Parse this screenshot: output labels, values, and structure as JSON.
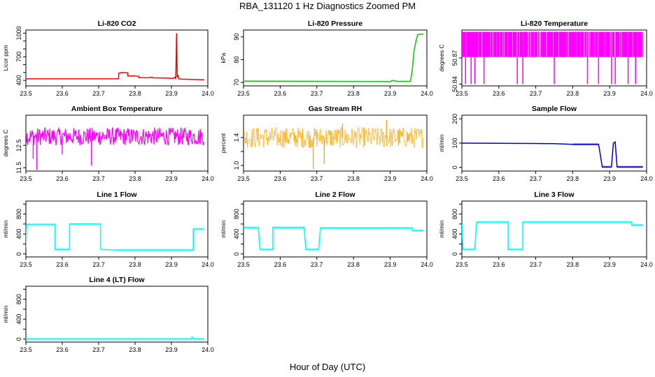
{
  "main_title": "RBA_131120  1 Hz Diagnostics Zoomed PM",
  "x_label": "Hour of Day (UTC)",
  "chart_data": [
    {
      "type": "line",
      "title": "Li-820 CO2",
      "ylabel": "Licor ppm",
      "color": "#ff0000",
      "xlim": [
        23.5,
        24.0
      ],
      "ylim": [
        330,
        1040
      ],
      "xticks": [
        23.5,
        23.6,
        23.7,
        23.8,
        23.9,
        24.0
      ],
      "yticks": [
        400,
        500,
        600,
        700,
        800,
        900,
        1000
      ],
      "yticklabels": [
        "400",
        "",
        "",
        "700",
        "",
        "",
        "1000"
      ],
      "points": [
        [
          23.5,
          420
        ],
        [
          23.755,
          420
        ],
        [
          23.755,
          490
        ],
        [
          23.765,
          500
        ],
        [
          23.78,
          495
        ],
        [
          23.78,
          455
        ],
        [
          23.795,
          458
        ],
        [
          23.81,
          452
        ],
        [
          23.81,
          435
        ],
        [
          23.84,
          433
        ],
        [
          23.845,
          442
        ],
        [
          23.85,
          432
        ],
        [
          23.88,
          430
        ],
        [
          23.905,
          426
        ],
        [
          23.91,
          440
        ],
        [
          23.912,
          420
        ],
        [
          23.914,
          1000
        ],
        [
          23.916,
          440
        ],
        [
          23.918,
          470
        ],
        [
          23.92,
          420
        ],
        [
          23.93,
          415
        ],
        [
          23.99,
          408
        ]
      ]
    },
    {
      "type": "line",
      "title": "Li-820 Pressure",
      "ylabel": "kPa",
      "color": "#00cc00",
      "xlim": [
        23.5,
        24.0
      ],
      "ylim": [
        68.5,
        93
      ],
      "xticks": [
        23.5,
        23.6,
        23.7,
        23.8,
        23.9,
        24.0
      ],
      "yticks": [
        70,
        80,
        90
      ],
      "yticklabels": [
        "70",
        "80",
        "90"
      ],
      "points": [
        [
          23.5,
          70.6
        ],
        [
          23.88,
          70.4
        ],
        [
          23.9,
          70.3
        ],
        [
          23.905,
          70.9
        ],
        [
          23.92,
          70.5
        ],
        [
          23.955,
          70.5
        ],
        [
          23.96,
          75
        ],
        [
          23.965,
          84
        ],
        [
          23.97,
          88
        ],
        [
          23.975,
          91
        ],
        [
          23.99,
          91.2
        ]
      ]
    },
    {
      "type": "dense-upper",
      "title": "Li-820 Temperature",
      "ylabel": "degrees C",
      "color": "#ff00ff",
      "xlim": [
        23.5,
        24.0
      ],
      "ylim": [
        50.838,
        50.902
      ],
      "xticks": [
        23.5,
        23.6,
        23.7,
        23.8,
        23.9,
        24.0
      ],
      "yticks": [
        50.84,
        50.87
      ],
      "yticklabels": [
        "50.84",
        "50.87"
      ],
      "levels": [
        50.871,
        50.9
      ],
      "spikes_to": 50.84,
      "spikes_x": [
        23.51,
        23.525,
        23.535,
        23.56,
        23.65,
        23.665,
        23.75,
        23.84,
        23.87,
        23.905,
        23.915,
        23.95,
        23.97
      ]
    },
    {
      "type": "noisy",
      "title": "Ambient Box Temperature",
      "ylabel": "degrees C",
      "color": "#ff00ff",
      "xlim": [
        23.5,
        24.0
      ],
      "ylim": [
        11.35,
        13.85
      ],
      "xticks": [
        23.5,
        23.6,
        23.7,
        23.8,
        23.9,
        24.0
      ],
      "yticks": [
        11.5,
        12.5
      ],
      "yticklabels": [
        "11.5",
        "12.5"
      ],
      "band_low": 12.5,
      "band_high": 13.3,
      "spikes": [
        [
          23.53,
          11.4
        ],
        [
          23.52,
          11.9
        ],
        [
          23.68,
          11.6
        ],
        [
          23.6,
          12.1
        ]
      ]
    },
    {
      "type": "noisy",
      "title": "Gas Stream RH",
      "ylabel": "percent",
      "color": "#ffa500",
      "xlim": [
        23.5,
        24.0
      ],
      "ylim": [
        0.92,
        1.72
      ],
      "xticks": [
        23.5,
        23.6,
        23.7,
        23.8,
        23.9,
        24.0
      ],
      "yticks": [
        1.0,
        1.2,
        1.4
      ],
      "yticklabels": [
        "1.0",
        "",
        "1.4"
      ],
      "band_low": 1.25,
      "band_high": 1.55,
      "spikes": [
        [
          23.69,
          0.95
        ],
        [
          23.72,
          1.02
        ],
        [
          23.77,
          1.6
        ],
        [
          23.89,
          1.65
        ]
      ]
    },
    {
      "type": "line",
      "title": "Sample Flow",
      "ylabel": "ml/min",
      "color": "#0000cc",
      "xlim": [
        23.5,
        24.0
      ],
      "ylim": [
        -15,
        215
      ],
      "xticks": [
        23.5,
        23.6,
        23.7,
        23.8,
        23.9,
        24.0
      ],
      "yticks": [
        0,
        100,
        200
      ],
      "yticklabels": [
        "0",
        "100",
        "200"
      ],
      "points": [
        [
          23.5,
          100
        ],
        [
          23.75,
          98
        ],
        [
          23.8,
          95
        ],
        [
          23.87,
          95
        ],
        [
          23.875,
          50
        ],
        [
          23.88,
          2
        ],
        [
          23.905,
          2
        ],
        [
          23.91,
          100
        ],
        [
          23.915,
          105
        ],
        [
          23.92,
          2
        ],
        [
          23.99,
          2
        ]
      ]
    },
    {
      "type": "line",
      "title": "Line 1 Flow",
      "ylabel": "ml/min",
      "color": "#00ffff",
      "xlim": [
        23.5,
        24.0
      ],
      "ylim": [
        -60,
        1060
      ],
      "xticks": [
        23.5,
        23.6,
        23.7,
        23.8,
        23.9,
        24.0
      ],
      "yticks": [
        0,
        200,
        400,
        600,
        800,
        1000
      ],
      "yticklabels": [
        "0",
        "",
        "400",
        "",
        "800",
        ""
      ],
      "points": [
        [
          23.5,
          120
        ],
        [
          23.502,
          590
        ],
        [
          23.58,
          590
        ],
        [
          23.58,
          90
        ],
        [
          23.62,
          90
        ],
        [
          23.62,
          600
        ],
        [
          23.705,
          600
        ],
        [
          23.705,
          90
        ],
        [
          23.75,
          80
        ],
        [
          23.96,
          80
        ],
        [
          23.96,
          500
        ],
        [
          23.99,
          500
        ]
      ]
    },
    {
      "type": "line",
      "title": "Line 2 Flow",
      "ylabel": "ml/min",
      "color": "#00ffff",
      "xlim": [
        23.5,
        24.0
      ],
      "ylim": [
        -60,
        1060
      ],
      "xticks": [
        23.5,
        23.6,
        23.7,
        23.8,
        23.9,
        24.0
      ],
      "yticks": [
        0,
        200,
        400,
        600,
        800,
        1000
      ],
      "yticklabels": [
        "0",
        "",
        "400",
        "",
        "800",
        ""
      ],
      "points": [
        [
          23.5,
          530
        ],
        [
          23.54,
          530
        ],
        [
          23.545,
          90
        ],
        [
          23.58,
          90
        ],
        [
          23.58,
          530
        ],
        [
          23.665,
          530
        ],
        [
          23.67,
          90
        ],
        [
          23.705,
          90
        ],
        [
          23.71,
          520
        ],
        [
          23.96,
          520
        ],
        [
          23.96,
          470
        ],
        [
          23.99,
          470
        ]
      ]
    },
    {
      "type": "line",
      "title": "Line 3 Flow",
      "ylabel": "ml/min",
      "color": "#00ffff",
      "xlim": [
        23.5,
        24.0
      ],
      "ylim": [
        -60,
        1060
      ],
      "xticks": [
        23.5,
        23.6,
        23.7,
        23.8,
        23.9,
        24.0
      ],
      "yticks": [
        0,
        200,
        400,
        600,
        800,
        1000
      ],
      "yticklabels": [
        "0",
        "",
        "400",
        "",
        "800",
        ""
      ],
      "points": [
        [
          23.5,
          600
        ],
        [
          23.503,
          90
        ],
        [
          23.535,
          90
        ],
        [
          23.54,
          640
        ],
        [
          23.625,
          640
        ],
        [
          23.625,
          90
        ],
        [
          23.665,
          90
        ],
        [
          23.665,
          640
        ],
        [
          23.96,
          640
        ],
        [
          23.96,
          580
        ],
        [
          23.99,
          580
        ]
      ]
    },
    {
      "type": "line",
      "title": "Line 4 (LT) Flow",
      "ylabel": "ml/min",
      "color": "#00ffff",
      "xlim": [
        23.5,
        24.0
      ],
      "ylim": [
        -60,
        1060
      ],
      "xticks": [
        23.5,
        23.6,
        23.7,
        23.8,
        23.9,
        24.0
      ],
      "yticks": [
        0,
        200,
        400,
        600,
        800,
        1000
      ],
      "yticklabels": [
        "0",
        "",
        "400",
        "",
        "800",
        ""
      ],
      "points": [
        [
          23.5,
          3
        ],
        [
          23.955,
          3
        ],
        [
          23.957,
          40
        ],
        [
          23.96,
          3
        ],
        [
          23.99,
          3
        ]
      ]
    }
  ]
}
